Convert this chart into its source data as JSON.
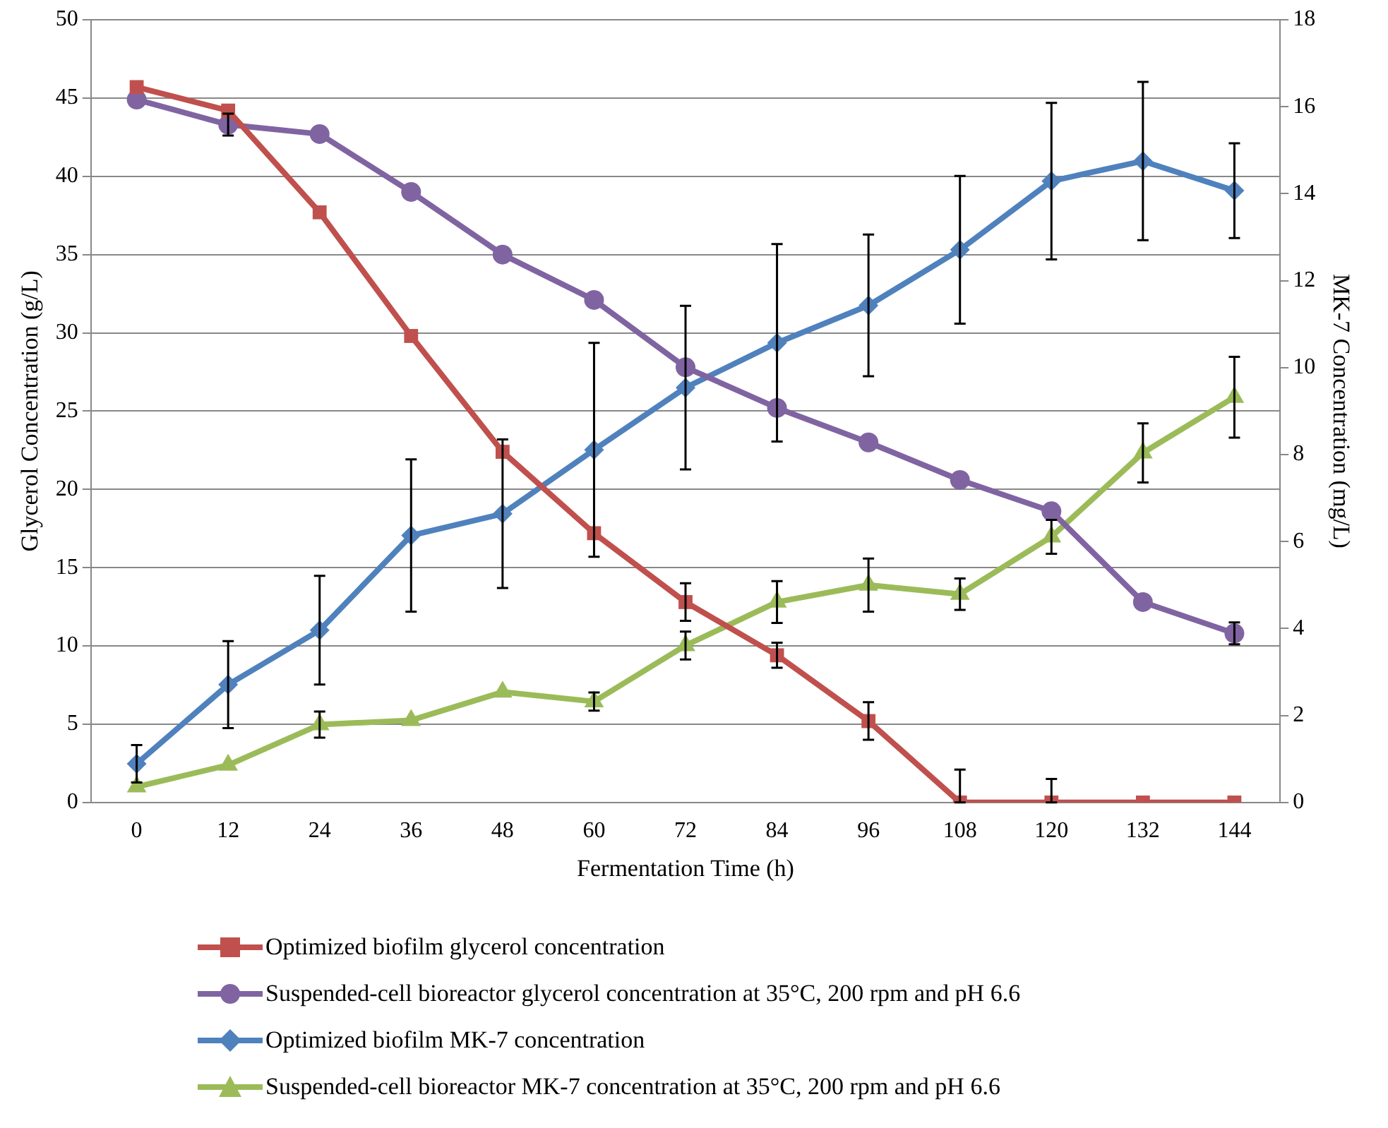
{
  "chart_data": {
    "type": "line",
    "xlabel": "Fermentation Time (h)",
    "ylabel": "Glycerol Concentration (g/L)",
    "y2label": "MK-7 Concentration (mg/L)",
    "categories": [
      "0",
      "12",
      "24",
      "36",
      "48",
      "60",
      "72",
      "84",
      "96",
      "108",
      "120",
      "132",
      "144"
    ],
    "series": [
      {
        "name": "Optimized biofilm glycerol concentration",
        "color": "#c0504d",
        "marker": "square",
        "values": [
          45.7,
          44.2,
          37.7,
          29.8,
          22.4,
          17.2,
          12.8,
          9.4,
          5.2,
          0,
          0,
          0,
          0
        ],
        "errors": [
          null,
          null,
          null,
          null,
          null,
          null,
          1.2,
          0.8,
          1.2,
          [
            0,
            2.1
          ],
          [
            0,
            1.5
          ],
          null,
          null
        ]
      },
      {
        "name": "Suspended-cell bioreactor glycerol concentration at 35°C, 200 rpm and pH 6.6",
        "color": "#8064a2",
        "marker": "circle",
        "values": [
          44.9,
          43.3,
          42.7,
          39.0,
          35.0,
          32.1,
          27.8,
          25.2,
          23.0,
          20.6,
          18.6,
          12.8,
          10.8
        ],
        "errors": [
          null,
          0.7,
          null,
          null,
          null,
          null,
          null,
          null,
          null,
          null,
          null,
          null,
          0.7
        ]
      },
      {
        "name": "Optimized biofilm MK-7 concentration",
        "color": "#4f81bd",
        "marker": "diamond",
        "axis": "y2",
        "values": [
          0.89,
          2.71,
          3.96,
          6.14,
          6.64,
          8.11,
          9.54,
          10.57,
          11.43,
          12.71,
          14.29,
          14.75,
          14.07
        ],
        "errors": [
          0.43,
          1.0,
          1.25,
          1.75,
          1.71,
          2.46,
          1.88,
          2.27,
          1.63,
          1.7,
          1.8,
          1.82,
          1.09
        ]
      },
      {
        "name": "Suspended-cell bioreactor MK-7 concentration at 35°C, 200 rpm and pH 6.6",
        "color": "#9bbb59",
        "marker": "triangle",
        "axis": "y2",
        "values": [
          0.36,
          0.86,
          1.79,
          1.89,
          2.54,
          2.32,
          3.61,
          4.61,
          5.0,
          4.79,
          6.11,
          8.04,
          9.32
        ],
        "errors": [
          null,
          null,
          0.3,
          null,
          null,
          0.21,
          0.32,
          0.48,
          0.61,
          0.36,
          0.39,
          0.68,
          0.93
        ]
      }
    ],
    "ylim": [
      0,
      50
    ],
    "yticks": [
      0,
      5,
      10,
      15,
      20,
      25,
      30,
      35,
      40,
      45,
      50
    ],
    "y2lim": [
      0,
      18
    ],
    "y2ticks": [
      0,
      2,
      4,
      6,
      8,
      10,
      12,
      14,
      16,
      18
    ],
    "grid": "y",
    "legend": "bottom",
    "line_style": "solid"
  }
}
